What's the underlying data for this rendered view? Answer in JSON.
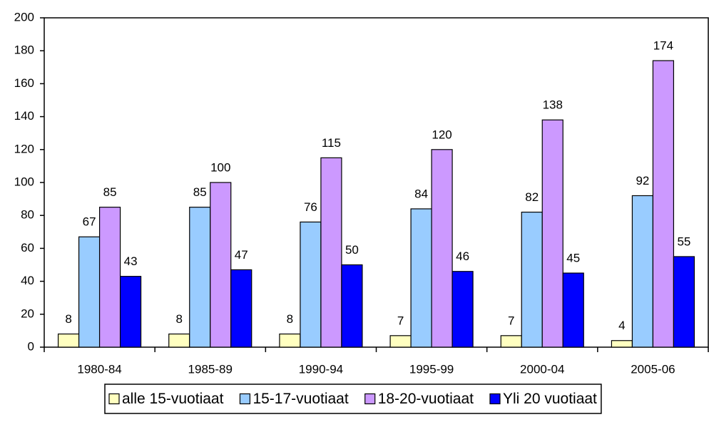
{
  "chart_data": {
    "type": "bar",
    "categories": [
      "1980-84",
      "1985-89",
      "1990-94",
      "1995-99",
      "2000-04",
      "2005-06"
    ],
    "series": [
      {
        "name": "alle 15-vuotiaat",
        "color": "#ffffc0",
        "values": [
          8,
          8,
          8,
          7,
          7,
          4
        ]
      },
      {
        "name": "15-17-vuotiaat",
        "color": "#99ccff",
        "values": [
          67,
          85,
          76,
          84,
          82,
          92
        ]
      },
      {
        "name": "18-20-vuotiaat",
        "color": "#cc99ff",
        "values": [
          85,
          100,
          115,
          120,
          138,
          174
        ]
      },
      {
        "name": "Yli 20 vuotiaat",
        "color": "#0000ff",
        "values": [
          43,
          47,
          50,
          46,
          45,
          55
        ]
      }
    ],
    "ylim": [
      0,
      200
    ],
    "yticks": [
      0,
      20,
      40,
      60,
      80,
      100,
      120,
      140,
      160,
      180,
      200
    ],
    "legend": "bottom"
  }
}
